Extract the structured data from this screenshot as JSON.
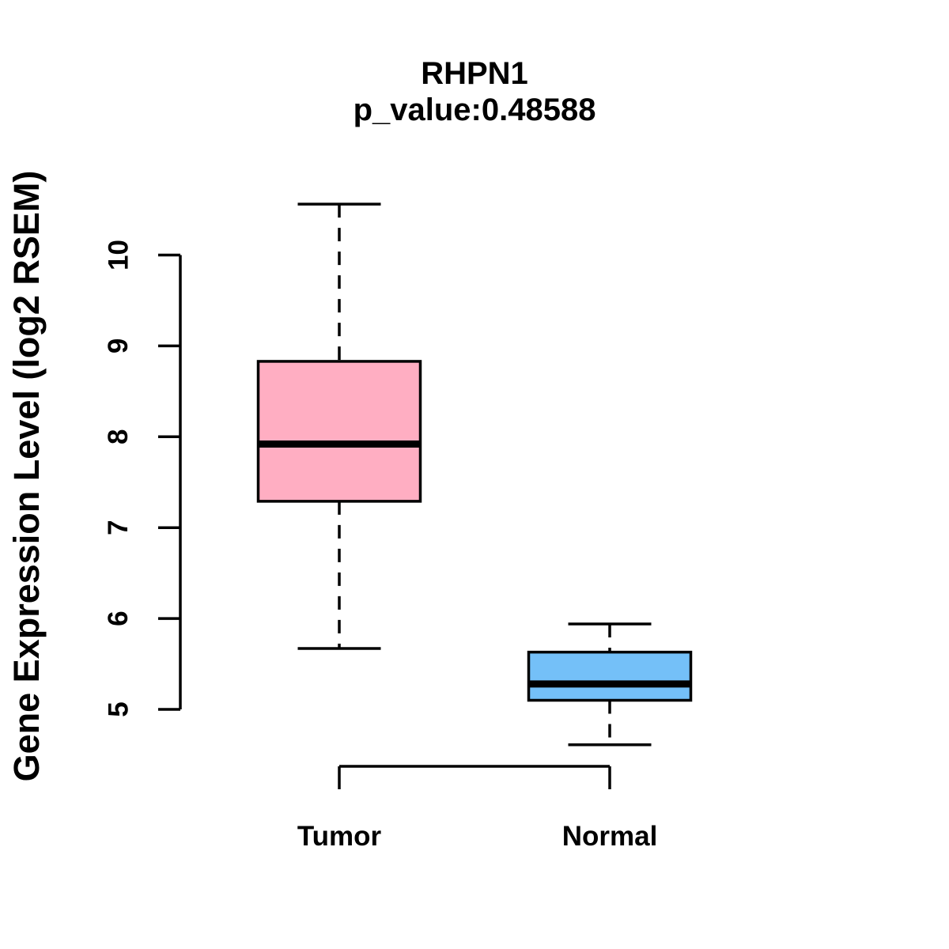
{
  "title": "RHPN1",
  "subtitle": "p_value:0.48588",
  "y_axis": {
    "label": "Gene Expression Level (log2 RSEM)"
  },
  "chart_data": {
    "type": "boxplot",
    "title": "RHPN1",
    "subtitle": "p_value:0.48588",
    "ylabel": "Gene Expression Level (log2 RSEM)",
    "ylim": [
      4.3,
      10.8
    ],
    "yticks": [
      5,
      6,
      7,
      8,
      9,
      10
    ],
    "grid": false,
    "legend": "none",
    "categories": [
      "Tumor",
      "Normal"
    ],
    "series": [
      {
        "name": "Tumor",
        "color": "#FFAEC2",
        "whisker_low": 5.67,
        "q1": 7.29,
        "median": 7.92,
        "q3": 8.83,
        "whisker_high": 10.56
      },
      {
        "name": "Normal",
        "color": "#74C0F8",
        "whisker_low": 4.61,
        "q1": 5.1,
        "median": 5.28,
        "q3": 5.63,
        "whisker_high": 5.94
      }
    ],
    "stroke_color": "#000000"
  }
}
